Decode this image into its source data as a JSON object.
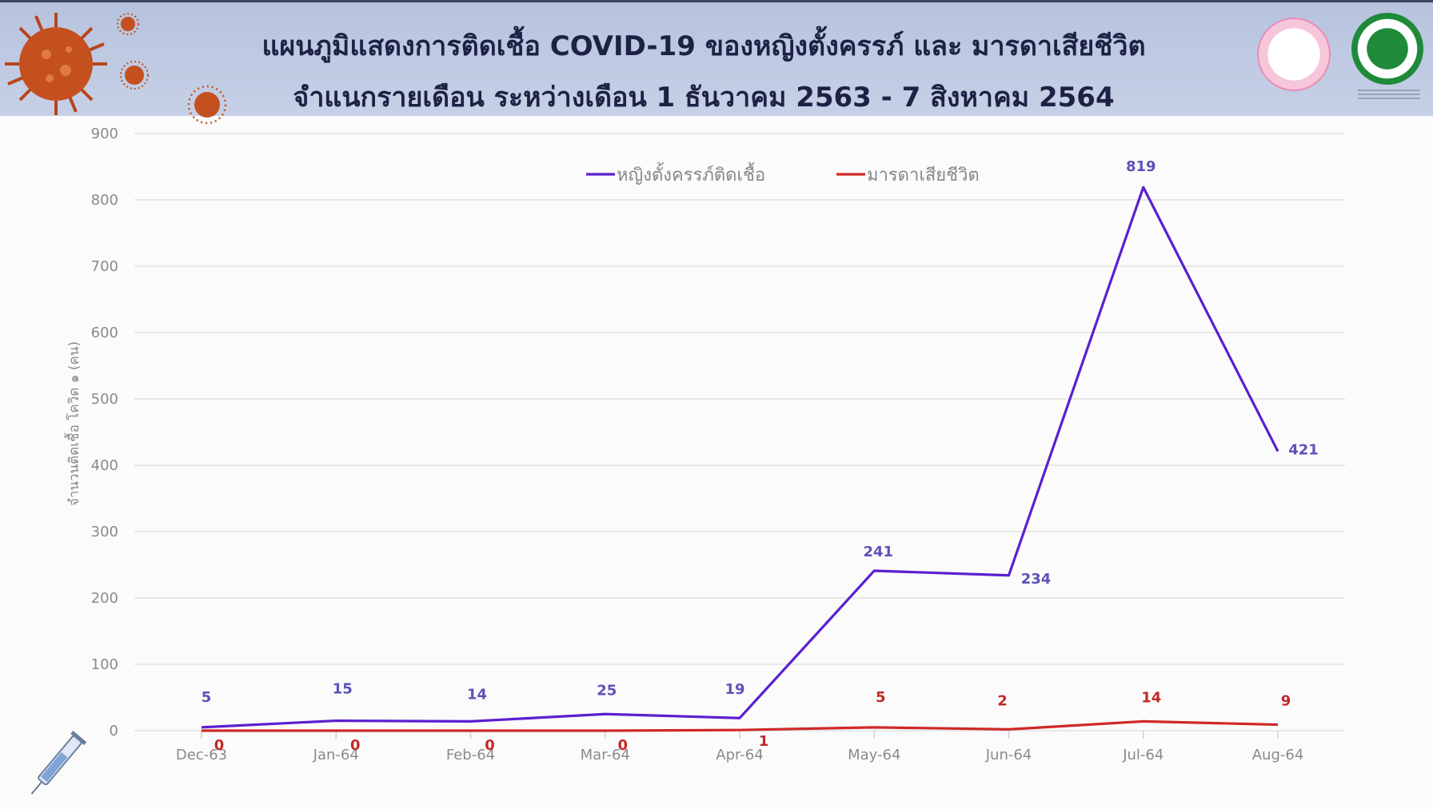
{
  "header": {
    "title_line1": "แผนภูมิแสดงการติดเชื้อ COVID-19 ของหญิงตั้งครรภ์ และ มารดาเสียชีวิต",
    "title_line2": "จำแนกรายเดือน ระหว่างเดือน 1 ธันวาคม 2563 - 7 สิงหาคม 2564"
  },
  "colors": {
    "infected": "#5a1fd1",
    "deaths": "#d02828",
    "infected_label": "#5b52b8",
    "deaths_label": "#c42828",
    "axis_text": "#8a8a8a",
    "grid": "#e2e2e2"
  },
  "icons": [
    "virus-icon",
    "syringe-icon",
    "logo-mother-child",
    "logo-ministry-of-public-health"
  ],
  "chart_data": {
    "type": "line",
    "title": "แผนภูมิแสดงการติดเชื้อ COVID-19 ของหญิงตั้งครรภ์ และ มารดาเสียชีวิต",
    "subtitle": "จำแนกรายเดือน ระหว่างเดือน 1 ธันวาคม 2563 - 7 สิงหาคม 2564",
    "xlabel": "",
    "ylabel": "จำนวนติดเชื้อ โควิด ๑ (คน)",
    "categories": [
      "Dec-63",
      "Jan-64",
      "Feb-64",
      "Mar-64",
      "Apr-64",
      "May-64",
      "Jun-64",
      "Jul-64",
      "Aug-64"
    ],
    "ylim": [
      0,
      900
    ],
    "yticks": [
      0,
      100,
      200,
      300,
      400,
      500,
      600,
      700,
      800,
      900
    ],
    "grid": true,
    "legend_position": "top-center",
    "series": [
      {
        "name": "หญิงตั้งครรภ์ติดเชื้อ",
        "values": [
          5,
          15,
          14,
          25,
          19,
          241,
          234,
          819,
          421
        ]
      },
      {
        "name": "มารดาเสียชีวิต",
        "values": [
          0,
          0,
          0,
          0,
          1,
          5,
          2,
          14,
          9
        ]
      }
    ]
  }
}
